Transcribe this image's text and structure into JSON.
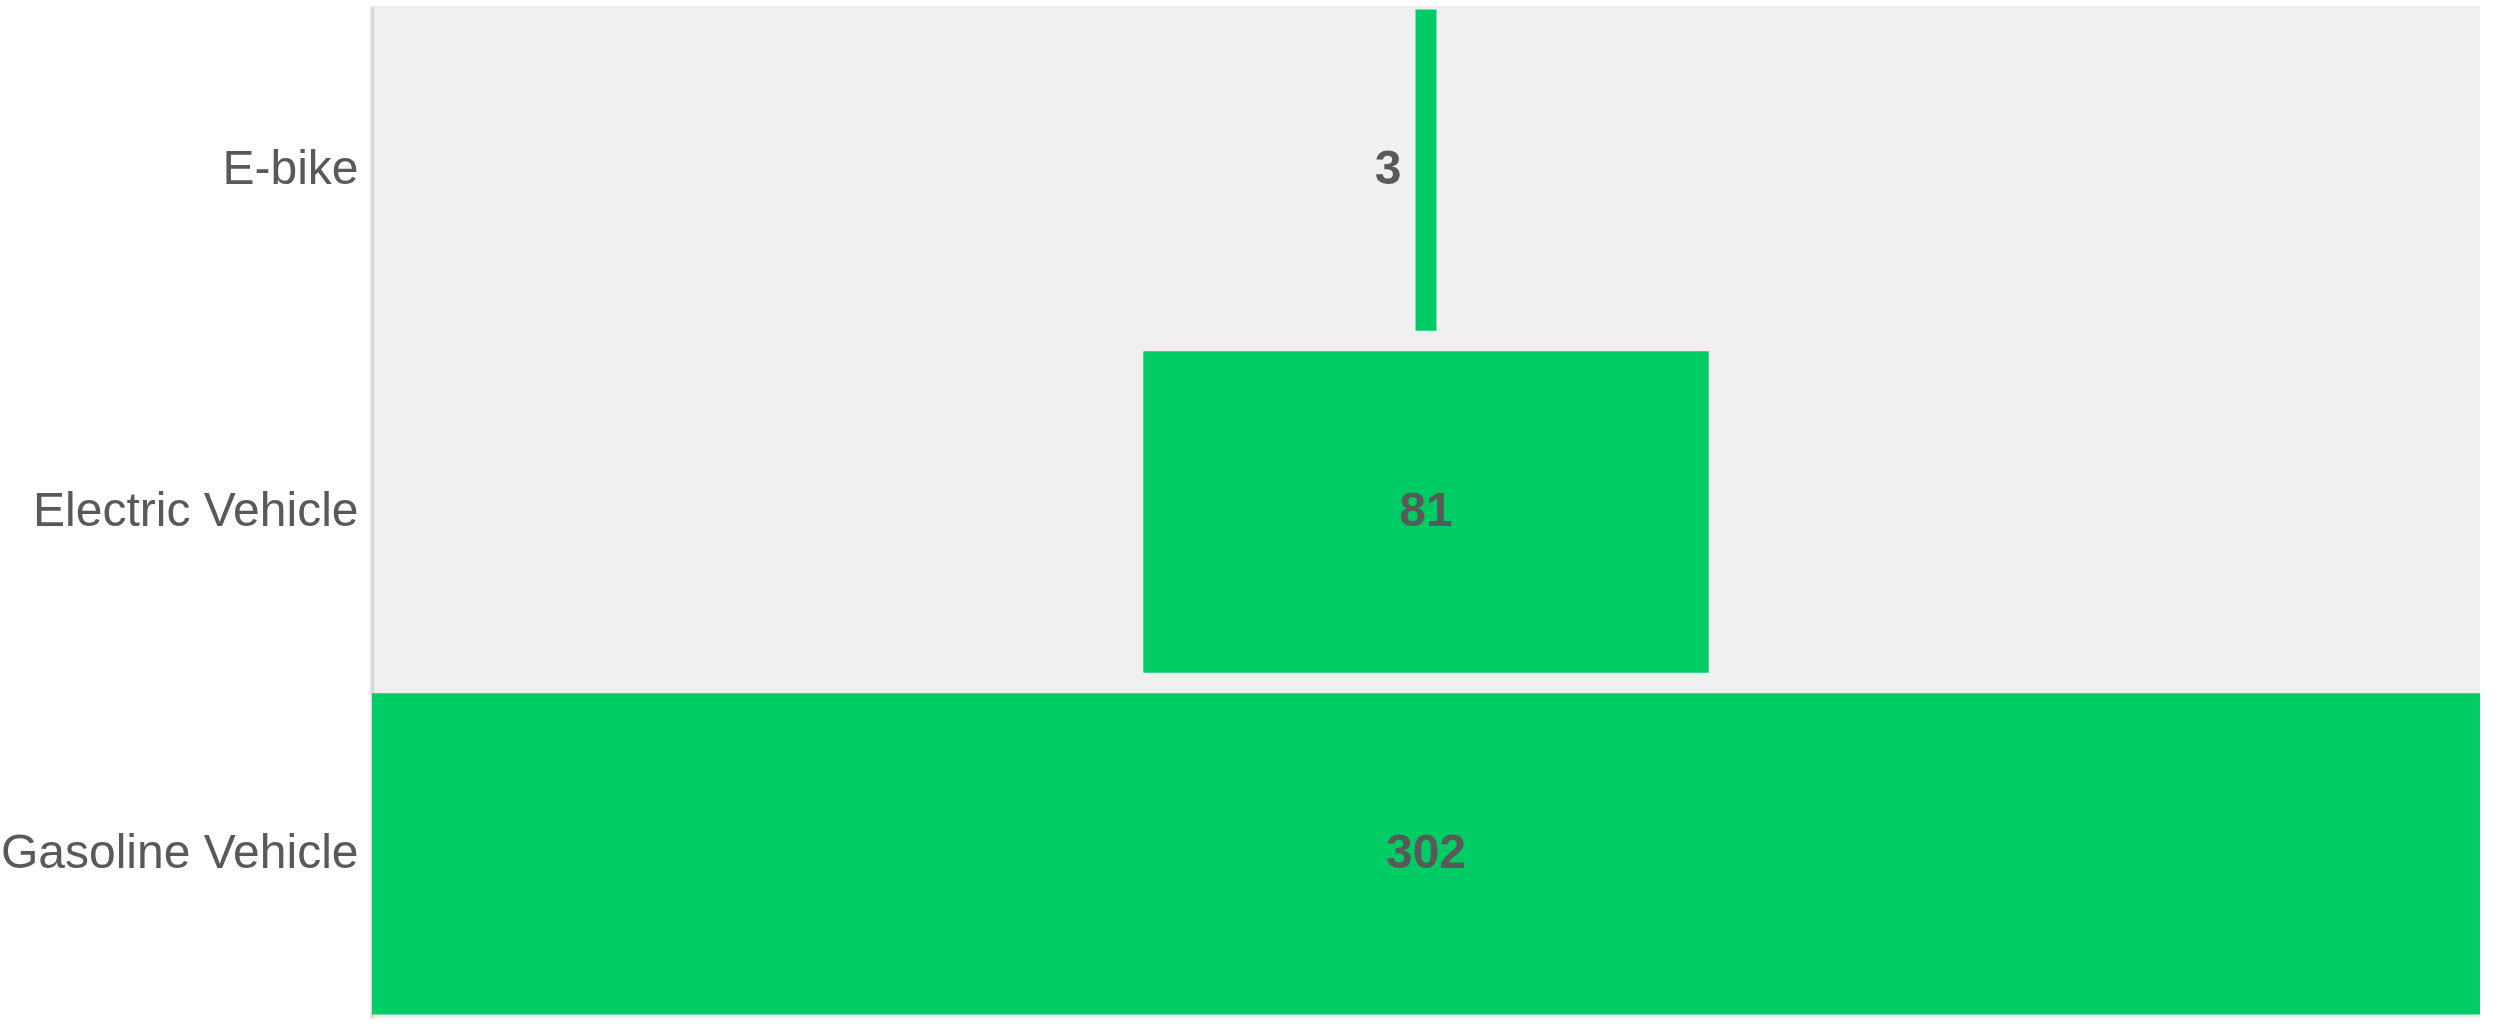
{
  "chart_data": {
    "type": "other",
    "categories": [
      "E-bike",
      "Electric Vehicle",
      "Gasoline Vehicle"
    ],
    "values": [
      3,
      81,
      302
    ],
    "color": "#00cc66",
    "data_labels": true
  }
}
